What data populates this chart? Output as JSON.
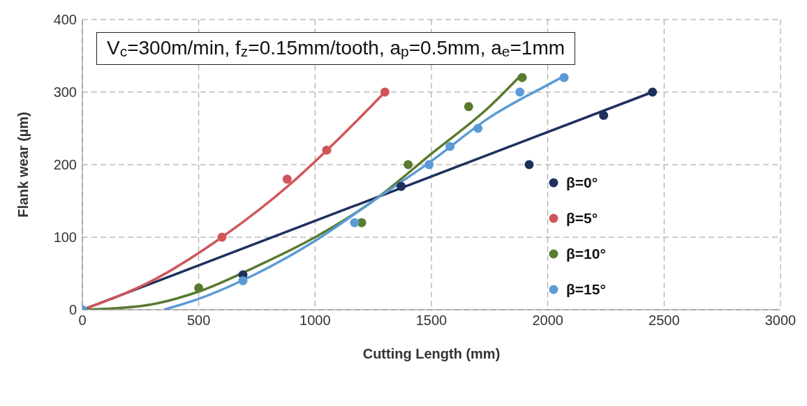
{
  "chart_data": {
    "type": "scatter",
    "xlabel": "Cutting Length (mm)",
    "ylabel": "Flank wear (µm)",
    "annotations": [
      "V$_{c}$=300m/min, f$_{z}$=0.15mm/tooth, a$_{p}$=0.5mm, a$_{e}$=1mm"
    ],
    "xlim": [
      0,
      3000
    ],
    "xticks": [
      0,
      500,
      1000,
      1500,
      2000,
      2500,
      3000
    ],
    "ylim": [
      0,
      400
    ],
    "yticks": [
      0,
      100,
      200,
      300,
      400
    ],
    "grid": true,
    "legend": "right",
    "marker": "circle",
    "line_style": "solid",
    "series": [
      {
        "name": "β=0°",
        "color": "#1f2f5e",
        "x": [
          690,
          1370,
          1920,
          2240,
          2450
        ],
        "values": [
          48,
          170,
          200,
          268,
          300
        ]
      },
      {
        "name": "β=5°",
        "color": "#d0555a",
        "x": [
          600,
          880,
          1050,
          1300
        ],
        "values": [
          100,
          180,
          220,
          300
        ]
      },
      {
        "name": "β=10°",
        "color": "#5a7a30",
        "x": [
          500,
          1200,
          1400,
          1660,
          1890
        ],
        "values": [
          30,
          120,
          200,
          280,
          320
        ]
      },
      {
        "name": "β=15°",
        "color": "#5b9bd5",
        "x": [
          0,
          690,
          1170,
          1490,
          1580,
          1700,
          1880,
          2070
        ],
        "values": [
          0,
          40,
          120,
          200,
          225,
          250,
          300,
          320
        ]
      },
      {
        "color": "#1f2f5e",
        "type": "line",
        "marker": "none",
        "x": [
          0,
          2450
        ],
        "values": [
          0,
          300
        ]
      },
      {
        "color": "#d0555a",
        "type": "line",
        "marker": "none",
        "x": [
          0,
          300,
          600,
          900,
          1100,
          1300
        ],
        "values": [
          0,
          40,
          100,
          175,
          235,
          300
        ]
      },
      {
        "color": "#5a7a30",
        "type": "line",
        "marker": "none",
        "x": [
          0,
          250,
          500,
          750,
          1000,
          1250,
          1500,
          1750,
          1890
        ],
        "values": [
          0,
          5,
          25,
          60,
          100,
          150,
          215,
          280,
          325
        ]
      },
      {
        "color": "#5b9bd5",
        "type": "line",
        "marker": "none",
        "x": [
          350,
          500,
          750,
          1000,
          1250,
          1500,
          1750,
          2000,
          2070
        ],
        "values": [
          0,
          15,
          50,
          95,
          150,
          205,
          265,
          310,
          322
        ]
      }
    ]
  }
}
